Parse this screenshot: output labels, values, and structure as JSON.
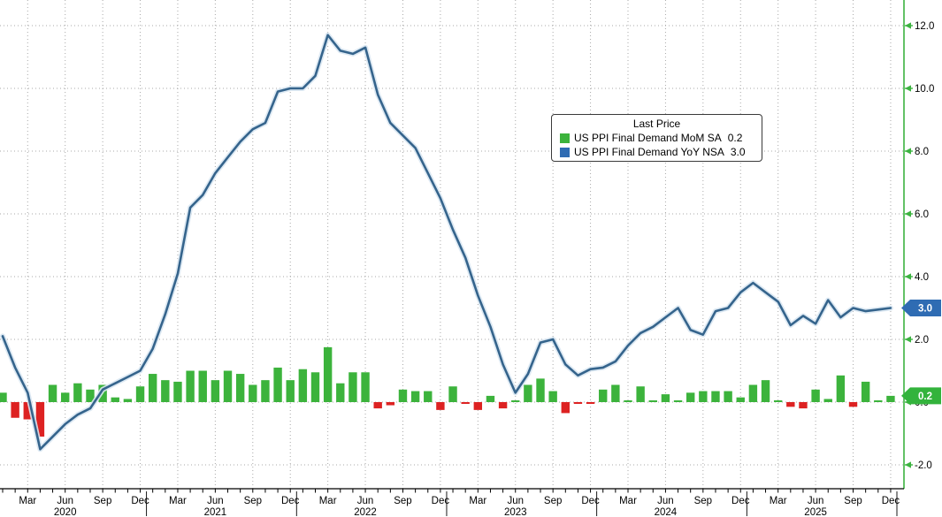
{
  "legend": {
    "title": "Last Price",
    "series": [
      {
        "label": "US PPI Final Demand MoM SA",
        "last_price": "0.2"
      },
      {
        "label": "US PPI Final Demand YoY NSA",
        "last_price": "3.0"
      }
    ]
  },
  "axis": {
    "y_tick_labels": [
      "12.0",
      "10.0",
      "8.0",
      "6.0",
      "4.0",
      "2.0",
      "0.0",
      "-2.0"
    ],
    "y_tick_values": [
      12,
      10,
      8,
      6,
      4,
      2,
      0,
      -2
    ],
    "x_quarter_labels": [
      "Mar",
      "Jun",
      "Sep",
      "Dec"
    ],
    "year_labels": [
      "2020",
      "2021",
      "2022",
      "2023",
      "2024",
      "2025"
    ]
  },
  "badges": {
    "yoy_last": "3.0",
    "mom_last": "0.2"
  },
  "colors": {
    "bar_up": "#3cb33c",
    "bar_down": "#dd2222",
    "line": "#35648c",
    "line_halo": "#d9e7f2",
    "badge_blue": "#2f6cb3",
    "badge_green": "#33b33c",
    "axis_green": "#3cb340",
    "grid": "#9a9a9a",
    "axis_black": "#000000"
  },
  "chart_data": {
    "type": "combo",
    "title": "",
    "x_start": "Jan 2020",
    "x_end": "Dec 2025",
    "x_freq": "monthly",
    "n_points": 72,
    "ylim": [
      -2.9,
      12.8
    ],
    "grid": "dotted",
    "legend_position": "top-center",
    "series": [
      {
        "name": "US PPI Final Demand MoM SA",
        "type": "bar",
        "color": "#3cb33c",
        "neg_color": "#dd2222",
        "last": 0.2,
        "values": [
          0.3,
          -0.5,
          -0.55,
          -1.1,
          0.55,
          0.3,
          0.6,
          0.4,
          0.55,
          0.15,
          0.1,
          0.5,
          0.9,
          0.7,
          0.65,
          1.0,
          1.0,
          0.7,
          1.0,
          0.9,
          0.55,
          0.7,
          1.1,
          0.7,
          1.05,
          0.95,
          1.75,
          0.6,
          0.95,
          0.95,
          -0.2,
          -0.1,
          0.4,
          0.35,
          0.35,
          -0.25,
          0.5,
          -0.05,
          -0.25,
          0.2,
          -0.2,
          0.05,
          0.55,
          0.75,
          0.35,
          -0.35,
          -0.05,
          -0.05,
          0.4,
          0.55,
          0.05,
          0.5,
          0.05,
          0.25,
          0.05,
          0.3,
          0.35,
          0.35,
          0.35,
          0.15,
          0.55,
          0.7,
          0.05,
          -0.15,
          -0.2,
          0.4,
          0.1,
          0.85,
          -0.15,
          0.65,
          0.05,
          0.2
        ]
      },
      {
        "name": "US PPI Final Demand YoY NSA",
        "type": "line",
        "color": "#35648c",
        "last": 3.0,
        "values": [
          2.1,
          1.1,
          0.3,
          -1.5,
          -1.1,
          -0.7,
          -0.4,
          -0.2,
          0.4,
          0.6,
          0.8,
          1.0,
          1.7,
          2.8,
          4.1,
          6.2,
          6.6,
          7.3,
          7.8,
          8.3,
          8.7,
          8.9,
          9.9,
          10.0,
          10.0,
          10.4,
          11.7,
          11.2,
          11.1,
          11.3,
          9.8,
          8.9,
          8.5,
          8.1,
          7.3,
          6.5,
          5.5,
          4.6,
          3.4,
          2.4,
          1.2,
          0.3,
          0.9,
          1.9,
          2.0,
          1.2,
          0.85,
          1.05,
          1.1,
          1.3,
          1.8,
          2.2,
          2.4,
          2.7,
          3.0,
          2.3,
          2.15,
          2.9,
          3.0,
          3.5,
          3.8,
          3.5,
          3.2,
          2.45,
          2.75,
          2.5,
          3.25,
          2.7,
          3.0,
          2.9,
          2.95,
          3.0
        ]
      }
    ]
  }
}
